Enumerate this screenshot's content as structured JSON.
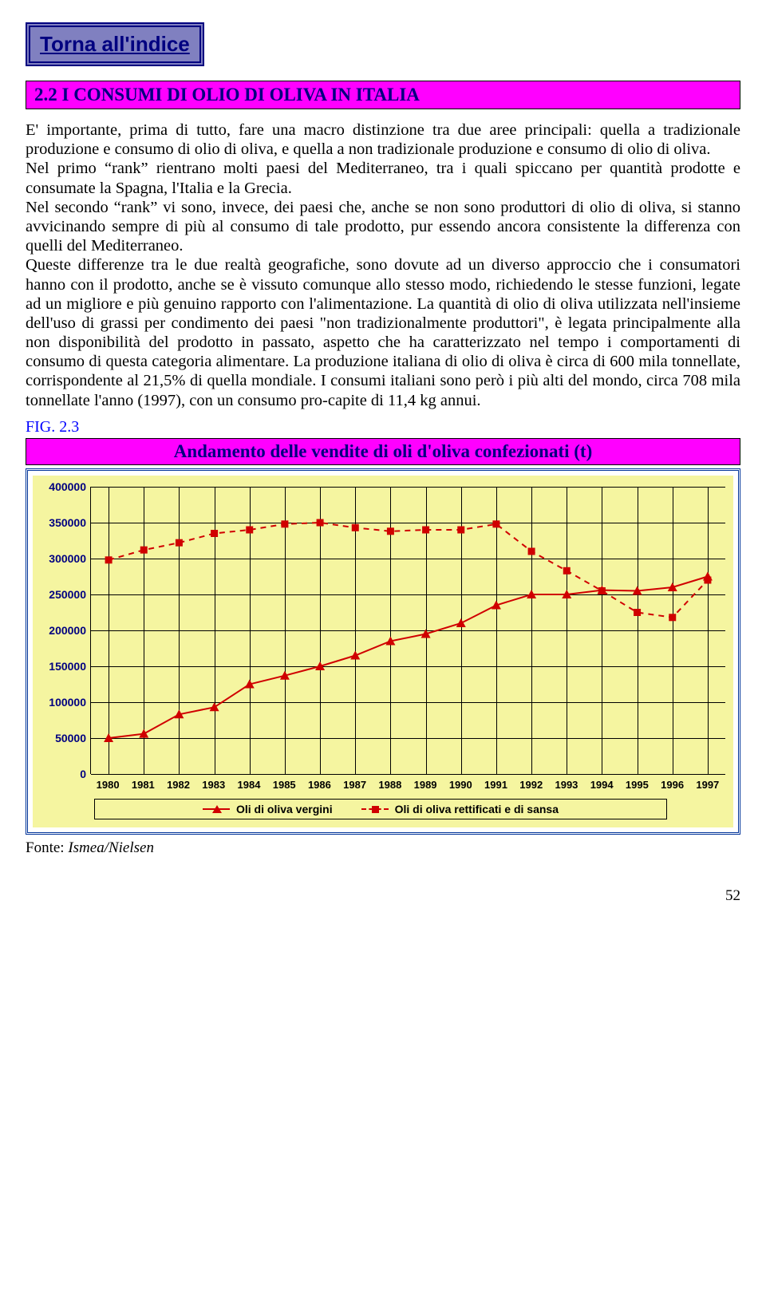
{
  "toc_button": "Torna all'indice",
  "section_heading": "2.2 I CONSUMI DI OLIO DI OLIVA IN ITALIA",
  "body": "E' importante, prima di tutto, fare una macro distinzione tra due aree principali: quella a tradizionale produzione e consumo di olio di oliva, e quella a non tradizionale produzione e consumo di olio di oliva.\nNel primo “rank” rientrano molti paesi del Mediterraneo, tra i quali spiccano per quantità prodotte e consumate la Spagna, l'Italia e la Grecia.\nNel secondo “rank” vi sono, invece, dei paesi che, anche se non sono produttori di olio di oliva, si stanno avvicinando sempre di più al consumo di tale prodotto, pur essendo ancora consistente la differenza con quelli del Mediterraneo.\nQueste differenze tra le due realtà geografiche, sono dovute ad un diverso approccio che i consumatori hanno con il prodotto, anche se è vissuto comunque allo stesso modo, richiedendo le stesse funzioni, legate ad un migliore e più genuino rapporto con l'alimentazione. La quantità di olio di oliva utilizzata nell'insieme dell'uso di grassi per condimento dei paesi \"non tradizionalmente produttori\", è legata principalmente alla non disponibilità del prodotto in passato, aspetto che ha caratterizzato nel tempo i comportamenti di consumo di questa categoria alimentare. La produzione italiana di olio di oliva è circa di 600 mila tonnellate, corrispondente al 21,5% di quella mondiale. I consumi italiani sono però i più alti del mondo, circa 708 mila tonnellate l'anno (1997), con un consumo pro-capite di 11,4 kg annui.",
  "fig_label": "FIG. 2.3",
  "chart": {
    "title": "Andamento delle vendite di oli d'oliva confezionati  (t)",
    "ymin": 0,
    "ymax": 400000,
    "ystep": 50000,
    "years": [
      "1980",
      "1981",
      "1982",
      "1983",
      "1984",
      "1985",
      "1986",
      "1987",
      "1988",
      "1989",
      "1990",
      "1991",
      "1992",
      "1993",
      "1994",
      "1995",
      "1996",
      "1997"
    ],
    "series": [
      {
        "name": "Oli di oliva vergini",
        "style": "solid",
        "marker": "triangle",
        "color": "#d00000",
        "values": [
          50000,
          56000,
          83000,
          93000,
          125000,
          137000,
          150000,
          165000,
          185000,
          195000,
          210000,
          235000,
          250000,
          250000,
          256000,
          255000,
          260000,
          275000
        ]
      },
      {
        "name": "Oli di oliva rettificati e di sansa",
        "style": "dashed",
        "marker": "square",
        "color": "#d00000",
        "values": [
          298000,
          312000,
          322000,
          335000,
          340000,
          348000,
          350000,
          343000,
          338000,
          340000,
          340000,
          348000,
          310000,
          283000,
          255000,
          225000,
          218000,
          270000
        ]
      }
    ],
    "bg": "#f5f5a0",
    "grid_color": "#000000"
  },
  "source": "Fonte: Ismea/Nielsen",
  "source_prefix": "Fonte: ",
  "source_name": "Ismea/Nielsen",
  "page_number": "52"
}
